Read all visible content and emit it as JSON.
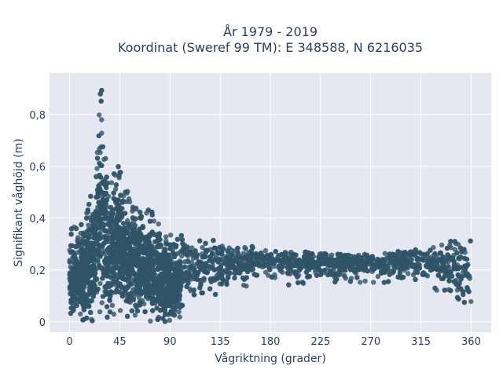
{
  "chart_data": {
    "type": "scatter",
    "title_line1": "År 1979 - 2019",
    "title_line2": "Koordinat (Sweref 99 TM): E 348588, N 6216035",
    "xlabel": "Vågriktning (grader)",
    "ylabel": "Signifikant våghöjd (m)",
    "xlim": [
      -18,
      378
    ],
    "ylim": [
      -0.04,
      0.96
    ],
    "x_ticks": [
      0,
      45,
      90,
      135,
      180,
      225,
      270,
      315,
      360
    ],
    "x_tick_labels": [
      "0",
      "45",
      "90",
      "135",
      "180",
      "225",
      "270",
      "315",
      "360"
    ],
    "y_ticks": [
      0,
      0.2,
      0.4,
      0.6,
      0.8
    ],
    "y_tick_labels": [
      "0",
      "0,2",
      "0,4",
      "0,6",
      "0,8"
    ],
    "grid": true,
    "colors": {
      "marker": "#2f5468",
      "plot_bg": "#e5e8f0",
      "grid": "#ffffff",
      "text": "#2a3f5f"
    },
    "envelope": {
      "x": [
        0,
        10,
        20,
        25,
        28,
        30,
        35,
        40,
        45,
        50,
        55,
        60,
        65,
        70,
        75,
        80,
        85,
        90,
        95,
        100,
        110,
        120,
        135,
        150,
        165,
        180,
        200,
        225,
        250,
        270,
        290,
        315,
        330,
        345,
        355,
        360
      ],
      "y_upper": [
        0.36,
        0.4,
        0.5,
        0.7,
        0.93,
        0.86,
        0.58,
        0.63,
        0.6,
        0.56,
        0.54,
        0.52,
        0.48,
        0.45,
        0.42,
        0.39,
        0.37,
        0.36,
        0.35,
        0.34,
        0.33,
        0.32,
        0.31,
        0.3,
        0.29,
        0.28,
        0.27,
        0.27,
        0.26,
        0.26,
        0.27,
        0.28,
        0.3,
        0.32,
        0.34,
        0.36
      ],
      "y_lower": [
        0.01,
        0.0,
        0.0,
        0.0,
        0.0,
        0.0,
        0.0,
        0.0,
        0.0,
        0.0,
        0.0,
        0.0,
        0.0,
        0.0,
        0.0,
        0.0,
        0.0,
        0.0,
        0.0,
        0.02,
        0.05,
        0.08,
        0.1,
        0.12,
        0.13,
        0.14,
        0.14,
        0.15,
        0.15,
        0.15,
        0.15,
        0.14,
        0.12,
        0.08,
        0.03,
        0.01
      ]
    },
    "point_count": 4500
  }
}
